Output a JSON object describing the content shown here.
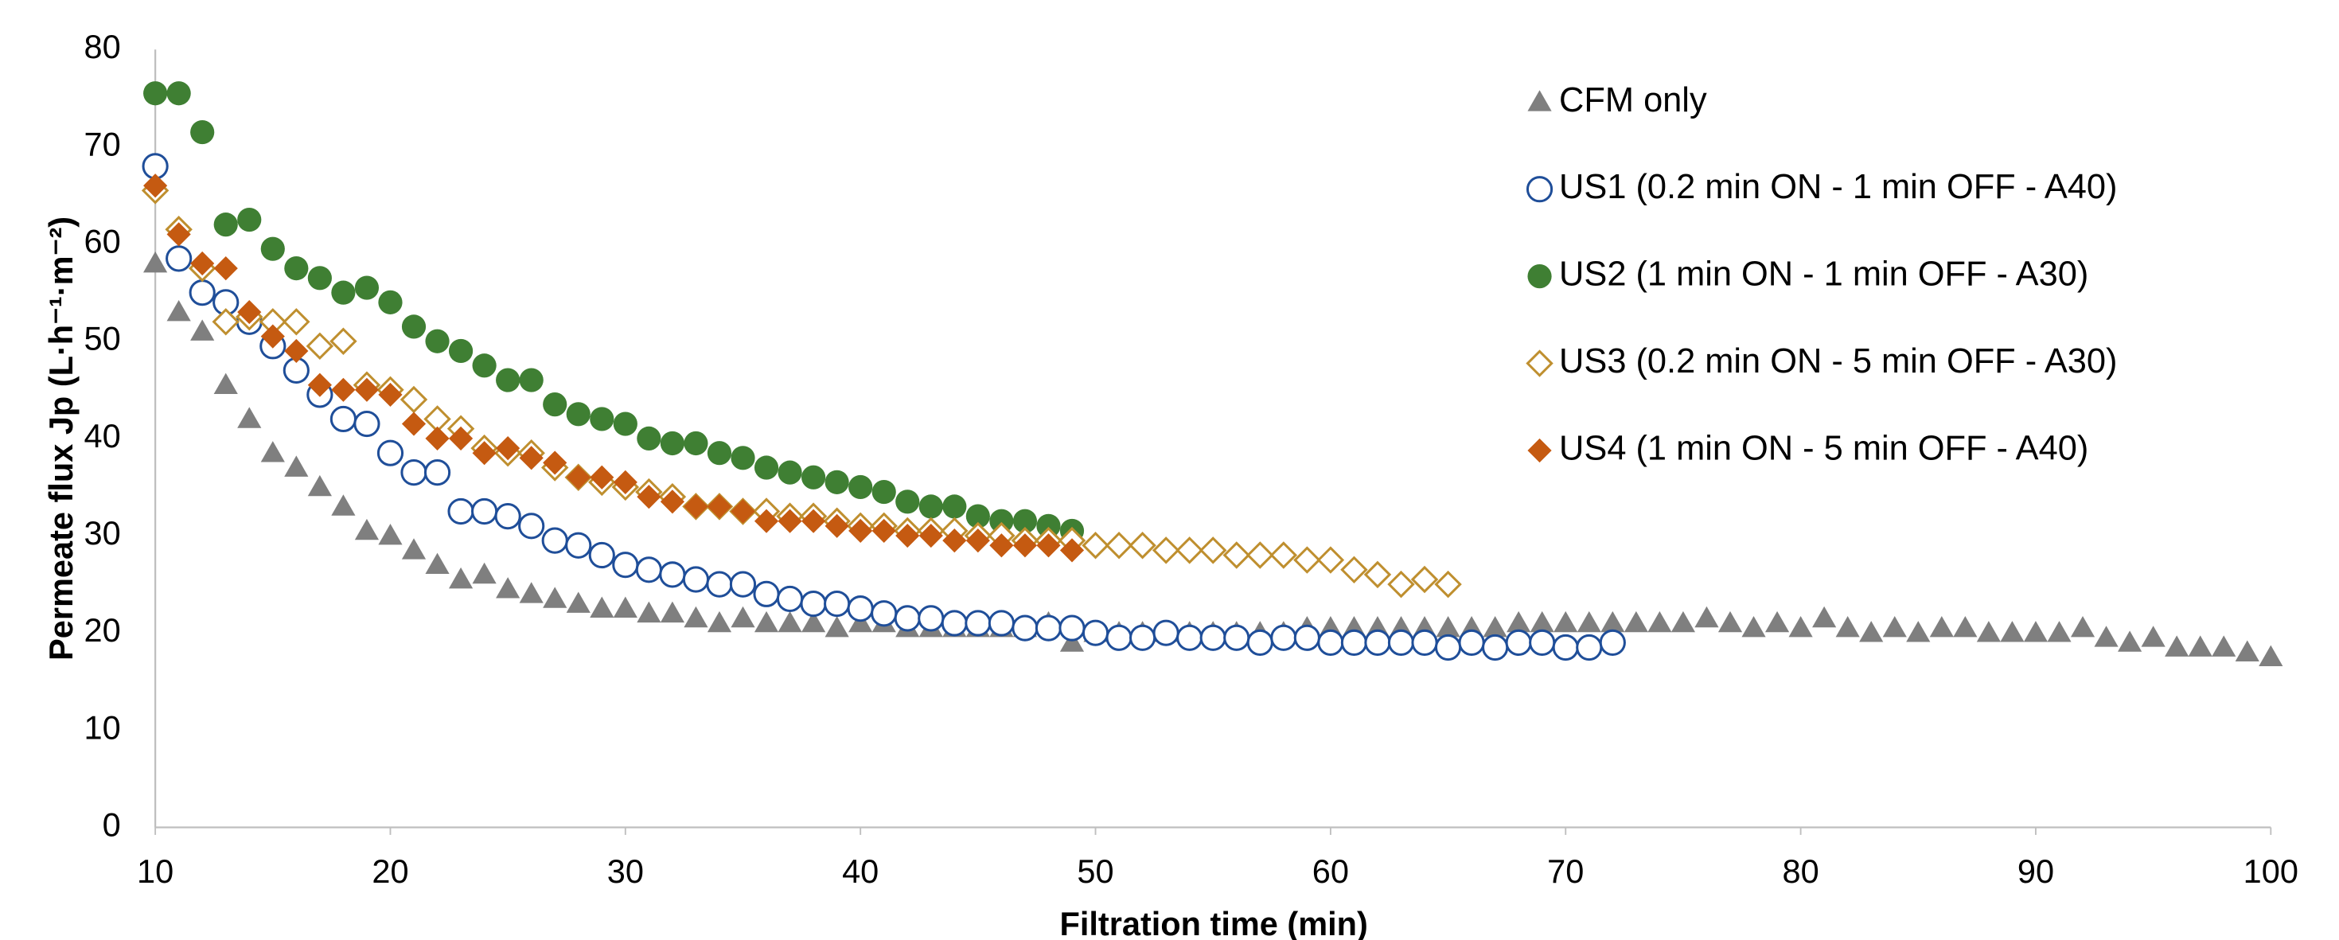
{
  "chart_data": {
    "type": "scatter",
    "xlabel": "Filtration time (min)",
    "ylabel": "Permeate flux Jp (L·h⁻¹·m⁻²)",
    "xlim": [
      10,
      100
    ],
    "xticks": [
      10,
      20,
      30,
      40,
      50,
      60,
      70,
      80,
      90,
      100
    ],
    "ylim": [
      0,
      80
    ],
    "yticks": [
      0,
      10,
      20,
      30,
      40,
      50,
      60,
      70,
      80
    ],
    "grid": false,
    "legend": "upper right",
    "series": [
      {
        "name": "CFM only",
        "color": "#7f7f7f",
        "marker": "triangle",
        "x": [
          10,
          11,
          12,
          13,
          14,
          15,
          16,
          17,
          18,
          19,
          20,
          21,
          22,
          23,
          24,
          25,
          26,
          27,
          28,
          29,
          30,
          31,
          32,
          33,
          34,
          35,
          36,
          37,
          38,
          39,
          40,
          41,
          42,
          43,
          44,
          45,
          46,
          47,
          48,
          49,
          50,
          51,
          52,
          53,
          54,
          55,
          56,
          57,
          58,
          59,
          60,
          61,
          62,
          63,
          64,
          65,
          66,
          67,
          68,
          69,
          70,
          71,
          72,
          73,
          74,
          75,
          76,
          77,
          78,
          79,
          80,
          81,
          82,
          83,
          84,
          85,
          86,
          87,
          88,
          89,
          90,
          91,
          92,
          93,
          94,
          95,
          96,
          97,
          98,
          99,
          100
        ],
        "values": [
          58,
          53,
          51,
          45.5,
          42,
          38.5,
          37,
          35,
          33,
          30.5,
          30,
          28.5,
          27,
          25.5,
          26,
          24.5,
          24,
          23.5,
          23,
          22.5,
          22.5,
          22,
          22,
          21.5,
          21,
          21.5,
          21,
          21,
          21,
          20.5,
          21,
          21,
          20.5,
          20.5,
          20.5,
          20.5,
          20.5,
          20.5,
          21,
          19,
          20,
          20,
          20,
          20,
          20,
          20,
          20,
          20,
          20,
          20.5,
          20.5,
          20.5,
          20.5,
          20.5,
          20.5,
          20.5,
          20.5,
          20.5,
          21,
          21,
          21,
          21,
          21,
          21,
          21,
          21,
          21.5,
          21,
          20.5,
          21,
          20.5,
          21.5,
          20.5,
          20,
          20.5,
          20,
          20.5,
          20.5,
          20,
          20,
          20,
          20,
          20.5,
          19.5,
          19,
          19.5,
          18.5,
          18.5,
          18.5,
          18,
          17.5
        ]
      },
      {
        "name": "US1 (0.2 min ON - 1 min OFF - A40)",
        "color": "#1f4e99",
        "marker": "circle-open",
        "x": [
          10,
          11,
          12,
          13,
          14,
          15,
          16,
          17,
          18,
          19,
          20,
          21,
          22,
          23,
          24,
          25,
          26,
          27,
          28,
          29,
          30,
          31,
          32,
          33,
          34,
          35,
          36,
          37,
          38,
          39,
          40,
          41,
          42,
          43,
          44,
          45,
          46,
          47,
          48,
          49,
          50,
          51,
          52,
          53,
          54,
          55,
          56,
          57,
          58,
          59,
          60,
          61,
          62,
          63,
          64,
          65,
          66,
          67,
          68,
          69,
          70,
          71,
          72
        ],
        "values": [
          68,
          58.5,
          55,
          54,
          52,
          49.5,
          47,
          44.5,
          42,
          41.5,
          38.5,
          36.5,
          36.5,
          32.5,
          32.5,
          32,
          31,
          29.5,
          29,
          28,
          27,
          26.5,
          26,
          25.5,
          25,
          25,
          24,
          23.5,
          23,
          23,
          22.5,
          22,
          21.5,
          21.5,
          21,
          21,
          21,
          20.5,
          20.5,
          20.5,
          20,
          19.5,
          19.5,
          20,
          19.5,
          19.5,
          19.5,
          19,
          19.5,
          19.5,
          19,
          19,
          19,
          19,
          19,
          18.5,
          19,
          18.5,
          19,
          19,
          18.5,
          18.5,
          19
        ]
      },
      {
        "name": "US2 (1 min ON - 1 min OFF - A30)",
        "color": "#3f7f33",
        "marker": "circle",
        "x": [
          10,
          11,
          12,
          13,
          14,
          15,
          16,
          17,
          18,
          19,
          20,
          21,
          22,
          23,
          24,
          25,
          26,
          27,
          28,
          29,
          30,
          31,
          32,
          33,
          34,
          35,
          36,
          37,
          38,
          39,
          40,
          41,
          42,
          43,
          44,
          45,
          46,
          47,
          48,
          49
        ],
        "values": [
          75.5,
          75.5,
          71.5,
          62,
          62.5,
          59.5,
          57.5,
          56.5,
          55,
          55.5,
          54,
          51.5,
          50,
          49,
          47.5,
          46,
          46,
          43.5,
          42.5,
          42,
          41.5,
          40,
          39.5,
          39.5,
          38.5,
          38,
          37,
          36.5,
          36,
          35.5,
          35,
          34.5,
          33.5,
          33,
          33,
          32,
          31.5,
          31.5,
          31,
          30.5
        ]
      },
      {
        "name": "US3 (0.2 min ON - 5 min OFF - A30)",
        "color": "#bf8f2f",
        "marker": "diamond-open",
        "x": [
          10,
          11,
          12,
          13,
          14,
          15,
          16,
          17,
          18,
          19,
          20,
          21,
          22,
          23,
          24,
          25,
          26,
          27,
          28,
          29,
          30,
          31,
          32,
          33,
          34,
          35,
          36,
          37,
          38,
          39,
          40,
          41,
          42,
          43,
          44,
          45,
          46,
          47,
          48,
          49,
          50,
          51,
          52,
          53,
          54,
          55,
          56,
          57,
          58,
          59,
          60,
          61,
          62,
          63,
          64,
          65
        ],
        "values": [
          65.5,
          61.5,
          57.5,
          52,
          52.5,
          52,
          52,
          49.5,
          50,
          45.5,
          45,
          44,
          42,
          41,
          39,
          38.5,
          38.5,
          37,
          36,
          35.5,
          35,
          34.5,
          34,
          33,
          33,
          32.5,
          32.5,
          32,
          32,
          31.5,
          31,
          31,
          30.5,
          30.5,
          30.5,
          30,
          30,
          29.5,
          29.5,
          29.5,
          29,
          29,
          29,
          28.5,
          28.5,
          28.5,
          28,
          28,
          28,
          27.5,
          27.5,
          26.5,
          26,
          25,
          25.5,
          25
        ]
      },
      {
        "name": "US4 (1 min ON - 5 min OFF - A40)",
        "color": "#c55a11",
        "marker": "diamond",
        "x": [
          10,
          11,
          12,
          13,
          14,
          15,
          16,
          17,
          18,
          19,
          20,
          21,
          22,
          23,
          24,
          25,
          26,
          27,
          28,
          29,
          30,
          31,
          32,
          33,
          34,
          35,
          36,
          37,
          38,
          39,
          40,
          41,
          42,
          43,
          44,
          45,
          46,
          47,
          48,
          49
        ],
        "values": [
          66,
          61,
          58,
          57.5,
          53,
          50.5,
          49,
          45.5,
          45,
          45,
          44.5,
          41.5,
          40,
          40,
          38.5,
          39,
          38,
          37.5,
          36,
          36,
          35.5,
          34,
          33.5,
          33,
          33,
          32.5,
          31.5,
          31.5,
          31.5,
          31,
          30.5,
          30.5,
          30,
          30,
          29.5,
          29.5,
          29,
          29,
          29,
          28.5
        ]
      }
    ]
  }
}
